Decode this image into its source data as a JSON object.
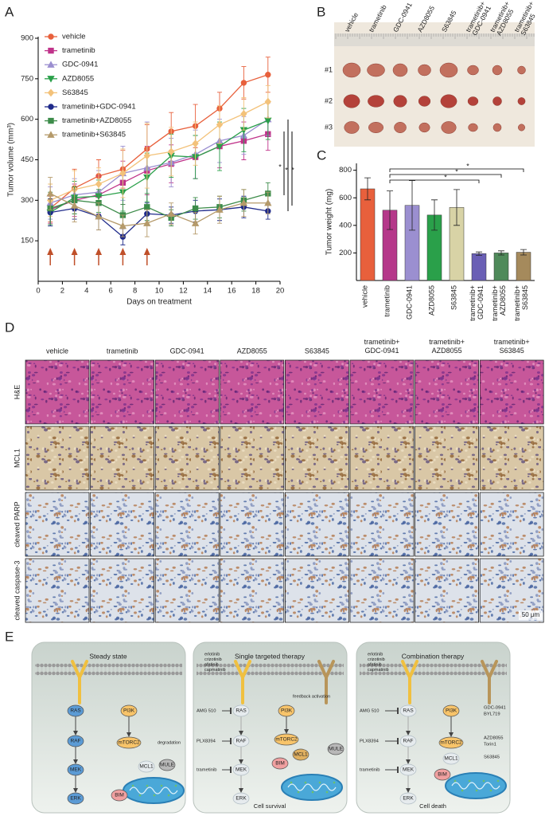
{
  "panel_labels": [
    "A",
    "B",
    "C",
    "D",
    "E"
  ],
  "chart_data": [
    {
      "type": "line",
      "x": [
        1,
        3,
        5,
        7,
        9,
        11,
        13,
        15,
        17,
        19
      ],
      "xlim": [
        0,
        20
      ],
      "xticks": [
        0,
        2,
        4,
        6,
        8,
        10,
        12,
        14,
        16,
        18,
        20
      ],
      "ylim": [
        0,
        900
      ],
      "yticks": [
        150,
        300,
        450,
        600,
        750,
        900
      ],
      "xlabel": "Days on treatment",
      "ylabel": "Tumor volume (mm³)",
      "treatment_days": [
        1,
        3,
        5,
        7,
        9
      ],
      "annotations": [
        "*",
        "*",
        "*"
      ],
      "series": [
        {
          "name": "vehicle",
          "color": "#e8603c",
          "marker": "circle",
          "values": [
            270,
            345,
            390,
            415,
            490,
            555,
            575,
            640,
            735,
            765
          ],
          "errors": [
            50,
            70,
            60,
            70,
            90,
            70,
            80,
            60,
            60,
            65
          ]
        },
        {
          "name": "trametinib",
          "color": "#c0338a",
          "marker": "square",
          "values": [
            265,
            300,
            320,
            365,
            410,
            435,
            460,
            500,
            520,
            545
          ],
          "errors": [
            50,
            60,
            70,
            80,
            90,
            70,
            80,
            80,
            70,
            60
          ]
        },
        {
          "name": "GDC-0941",
          "color": "#9b8fd0",
          "marker": "triangle",
          "values": [
            290,
            320,
            330,
            400,
            420,
            440,
            470,
            520,
            540,
            600
          ],
          "errors": [
            60,
            60,
            80,
            100,
            170,
            90,
            90,
            80,
            70,
            60
          ]
        },
        {
          "name": "AZD8055",
          "color": "#2aa04a",
          "marker": "triangle-down",
          "values": [
            255,
            310,
            315,
            330,
            385,
            465,
            460,
            500,
            560,
            595
          ],
          "errors": [
            50,
            60,
            60,
            70,
            90,
            80,
            80,
            90,
            80,
            70
          ]
        },
        {
          "name": "S63845",
          "color": "#f3c27a",
          "marker": "diamond",
          "values": [
            300,
            340,
            360,
            400,
            465,
            480,
            510,
            580,
            620,
            665
          ],
          "errors": [
            60,
            70,
            60,
            90,
            120,
            90,
            80,
            70,
            60,
            60
          ]
        },
        {
          "name": "trametinib+GDC-0941",
          "color": "#1f2a8a",
          "marker": "circle",
          "values": [
            255,
            270,
            240,
            165,
            250,
            245,
            260,
            265,
            275,
            260
          ],
          "errors": [
            50,
            40,
            50,
            30,
            40,
            30,
            40,
            40,
            40,
            30
          ]
        },
        {
          "name": "trametinib+AZD8055",
          "color": "#3d8c4a",
          "marker": "square",
          "values": [
            270,
            300,
            290,
            245,
            275,
            235,
            270,
            275,
            300,
            325
          ],
          "errors": [
            60,
            50,
            50,
            40,
            50,
            30,
            40,
            40,
            40,
            40
          ]
        },
        {
          "name": "trametinib+S63845",
          "color": "#b59a6a",
          "marker": "triangle",
          "values": [
            325,
            280,
            240,
            205,
            215,
            250,
            215,
            265,
            290,
            290
          ],
          "errors": [
            60,
            60,
            50,
            40,
            50,
            40,
            40,
            50,
            50,
            40
          ]
        }
      ]
    },
    {
      "type": "bar",
      "categories": [
        "vehicle",
        "trametinib",
        "GDC-0941",
        "AZD8055",
        "S63845",
        "trametinib+ GDC-0941",
        "trametinib+ AZD8055",
        "trametinib+ S63845"
      ],
      "values": [
        665,
        510,
        545,
        475,
        530,
        195,
        200,
        205
      ],
      "errors": [
        80,
        140,
        180,
        110,
        130,
        12,
        15,
        20
      ],
      "colors": [
        "#e8603c",
        "#b5388a",
        "#9b8fd0",
        "#2aa04a",
        "#d8d3a6",
        "#6a5fb5",
        "#4f8a5a",
        "#a58a5c"
      ],
      "ylim": [
        0,
        850
      ],
      "yticks": [
        200,
        400,
        600,
        800
      ],
      "ylabel": "Tumor weight (mg)",
      "annotations": [
        "*",
        "*",
        "*"
      ]
    }
  ],
  "photo": {
    "columns": [
      "vehicle",
      "trametinib",
      "GDC-0941",
      "AZD8055",
      "S63845",
      "trametinib+ GDC-0941",
      "trametinib+ AZD8055",
      "trametinib+ S63845"
    ],
    "rows": [
      "#1",
      "#2",
      "#3"
    ]
  },
  "histology": {
    "columns": [
      "vehicle",
      "trametinib",
      "GDC-0941",
      "AZD8055",
      "S63845",
      "trametinib+ GDC-0941",
      "trametinib+ AZD8055",
      "trametinib+ S63845"
    ],
    "rows": [
      "H&E",
      "MCL1",
      "cleaved PARP",
      "cleaved caspase-3"
    ],
    "scale_bar": "50 μm"
  },
  "diagram": {
    "panels": [
      {
        "title": "Steady state",
        "nodes": [
          "RAS",
          "RAF",
          "MEK",
          "ERK",
          "PI3K",
          "mTORC2",
          "MCL1",
          "MULE",
          "BIM"
        ],
        "notes": [
          "degradation"
        ]
      },
      {
        "title": "Single targeted therapy",
        "drugs": [
          "erlotinib",
          "crizotinib",
          "afatinib",
          "capmatinib"
        ],
        "inhibitors": [
          "AMG 510",
          "PLX8394",
          "trametinib"
        ],
        "nodes": [
          "RAS",
          "RAF",
          "MEK",
          "ERK",
          "PI3K",
          "mTORC2",
          "MCL1",
          "MULE",
          "BIM"
        ],
        "notes": [
          "feedback activation"
        ],
        "outcome": "Cell survival"
      },
      {
        "title": "Combination therapy",
        "drugs": [
          "erlotinib",
          "crizotinib",
          "afatinib",
          "capmatinib"
        ],
        "inhibitors": [
          "AMG 510",
          "PLX8394",
          "trametinib"
        ],
        "nodes": [
          "RAS",
          "RAF",
          "MEK",
          "ERK",
          "PI3K",
          "mTORC2",
          "MCL1",
          "BIM"
        ],
        "targets": [
          "GDC-0941",
          "BYL719",
          "AZD8055",
          "Torin1",
          "S63845"
        ],
        "outcome": "Cell death"
      }
    ]
  }
}
